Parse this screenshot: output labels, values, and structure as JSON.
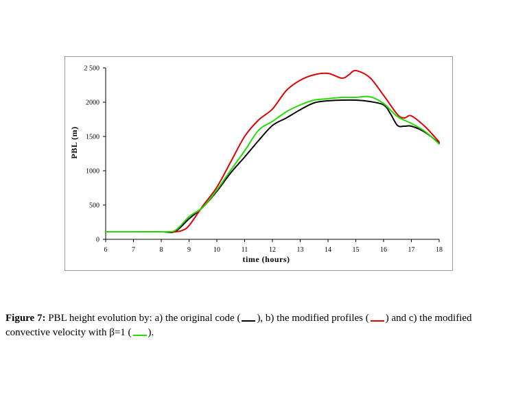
{
  "chart_data": {
    "type": "line",
    "xlabel": "time (hours)",
    "ylabel": "PBL (m)",
    "xlim": [
      6,
      18
    ],
    "ylim": [
      0,
      2500
    ],
    "x_ticks": [
      "6",
      "7",
      "8",
      "9",
      "10",
      "11",
      "12",
      "13",
      "14",
      "15",
      "16",
      "17",
      "18"
    ],
    "y_ticks": [
      "0",
      "500",
      "1000",
      "1500",
      "2000",
      "2500"
    ],
    "grid": false,
    "legend": "none",
    "series": [
      {
        "color": "#000000",
        "points": [
          [
            6,
            110
          ],
          [
            7,
            110
          ],
          [
            8,
            110
          ],
          [
            8.5,
            115
          ],
          [
            9,
            300
          ],
          [
            9.5,
            470
          ],
          [
            10,
            700
          ],
          [
            10.5,
            970
          ],
          [
            11,
            1200
          ],
          [
            11.5,
            1440
          ],
          [
            12,
            1660
          ],
          [
            12.5,
            1770
          ],
          [
            13,
            1890
          ],
          [
            13.5,
            1990
          ],
          [
            14,
            2020
          ],
          [
            14.5,
            2030
          ],
          [
            15,
            2030
          ],
          [
            15.5,
            2010
          ],
          [
            16,
            1960
          ],
          [
            16.25,
            1830
          ],
          [
            16.5,
            1660
          ],
          [
            16.75,
            1650
          ],
          [
            17,
            1650
          ],
          [
            17.5,
            1560
          ],
          [
            18,
            1400
          ]
        ]
      },
      {
        "color": "#e00000",
        "points": [
          [
            6,
            110
          ],
          [
            7,
            110
          ],
          [
            8,
            110
          ],
          [
            8.5,
            110
          ],
          [
            8.75,
            130
          ],
          [
            9,
            200
          ],
          [
            9.5,
            490
          ],
          [
            10,
            760
          ],
          [
            10.5,
            1130
          ],
          [
            11,
            1500
          ],
          [
            11.5,
            1740
          ],
          [
            12,
            1900
          ],
          [
            12.5,
            2170
          ],
          [
            13,
            2320
          ],
          [
            13.5,
            2400
          ],
          [
            14,
            2420
          ],
          [
            14.5,
            2350
          ],
          [
            14.75,
            2400
          ],
          [
            15,
            2460
          ],
          [
            15.5,
            2360
          ],
          [
            16,
            2100
          ],
          [
            16.5,
            1820
          ],
          [
            16.75,
            1770
          ],
          [
            17,
            1800
          ],
          [
            17.5,
            1640
          ],
          [
            18,
            1420
          ]
        ]
      },
      {
        "color": "#22dd00",
        "points": [
          [
            6,
            110
          ],
          [
            7,
            110
          ],
          [
            8,
            110
          ],
          [
            8.5,
            130
          ],
          [
            9,
            330
          ],
          [
            9.5,
            470
          ],
          [
            10,
            720
          ],
          [
            10.5,
            1010
          ],
          [
            11,
            1290
          ],
          [
            11.5,
            1590
          ],
          [
            12,
            1720
          ],
          [
            12.5,
            1860
          ],
          [
            13,
            1960
          ],
          [
            13.5,
            2030
          ],
          [
            14,
            2050
          ],
          [
            14.5,
            2070
          ],
          [
            15,
            2070
          ],
          [
            15.5,
            2080
          ],
          [
            16,
            1980
          ],
          [
            16.5,
            1790
          ],
          [
            17,
            1690
          ],
          [
            17.5,
            1570
          ],
          [
            18,
            1390
          ]
        ]
      }
    ]
  },
  "caption": {
    "label": "Figure 7:",
    "part1": " PBL height evolution by: a) the original code (",
    "part2": "), b) the  modified profiles  (",
    "part3": ") and c)  the modified convective velocity with β=1  (",
    "part4": ").",
    "swatch_colors": [
      "#000000",
      "#e00000",
      "#22dd00"
    ]
  }
}
